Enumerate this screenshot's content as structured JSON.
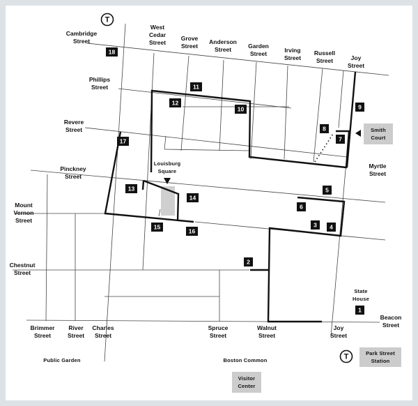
{
  "colors": {
    "background": "#dde2e6",
    "map_panel": "#ffffff",
    "street_line": "#444444",
    "route_line": "#111111",
    "marker_fill": "#111111",
    "marker_text": "#ffffff",
    "callout_box": "#cccccc",
    "square_fill": "#cfcfcf"
  },
  "streets": {
    "cambridge": [
      "Cambridge",
      "Street"
    ],
    "west_cedar": [
      "West",
      "Cedar",
      "Street"
    ],
    "grove": [
      "Grove",
      "Street"
    ],
    "anderson": [
      "Anderson",
      "Street"
    ],
    "garden": [
      "Garden",
      "Street"
    ],
    "irving": [
      "Irving",
      "Street"
    ],
    "russell": [
      "Russell",
      "Street"
    ],
    "joy_top": [
      "Joy",
      "Street"
    ],
    "phillips": [
      "Phillips",
      "Street"
    ],
    "revere": [
      "Revere",
      "Street"
    ],
    "pinckney": [
      "Pinckney",
      "Street"
    ],
    "myrtle": [
      "Myrtle",
      "Street"
    ],
    "mount_vernon": [
      "Mount",
      "Vernon",
      "Street"
    ],
    "chestnut": [
      "Chestnut",
      "Street"
    ],
    "beacon": [
      "Beacon",
      "Street"
    ],
    "brimmer": [
      "Brimmer",
      "Street"
    ],
    "river": [
      "River",
      "Street"
    ],
    "charles": [
      "Charles",
      "Street"
    ],
    "spruce": [
      "Spruce",
      "Street"
    ],
    "walnut": [
      "Walnut",
      "Street"
    ],
    "joy_bottom": [
      "Joy",
      "Street"
    ]
  },
  "places": {
    "louisburg_square": [
      "Louisburg",
      "Square"
    ],
    "smith_court": [
      "Smith",
      "Court"
    ],
    "state_house": [
      "State",
      "House"
    ],
    "park_street_station": [
      "Park Street",
      "Station"
    ],
    "public_garden": "Public Garden",
    "boston_common": "Boston Common",
    "visitor_center": [
      "Visitor",
      "Center"
    ]
  },
  "transit_symbol": "T",
  "markers": [
    {
      "id": "1",
      "label": "1"
    },
    {
      "id": "2",
      "label": "2"
    },
    {
      "id": "3",
      "label": "3"
    },
    {
      "id": "4",
      "label": "4"
    },
    {
      "id": "5",
      "label": "5"
    },
    {
      "id": "6",
      "label": "6"
    },
    {
      "id": "7",
      "label": "7"
    },
    {
      "id": "8",
      "label": "8"
    },
    {
      "id": "9",
      "label": "9"
    },
    {
      "id": "10",
      "label": "10"
    },
    {
      "id": "11",
      "label": "11"
    },
    {
      "id": "12",
      "label": "12"
    },
    {
      "id": "13",
      "label": "13"
    },
    {
      "id": "14",
      "label": "14"
    },
    {
      "id": "15",
      "label": "15"
    },
    {
      "id": "16",
      "label": "16"
    },
    {
      "id": "17",
      "label": "17"
    },
    {
      "id": "18",
      "label": "18"
    }
  ]
}
